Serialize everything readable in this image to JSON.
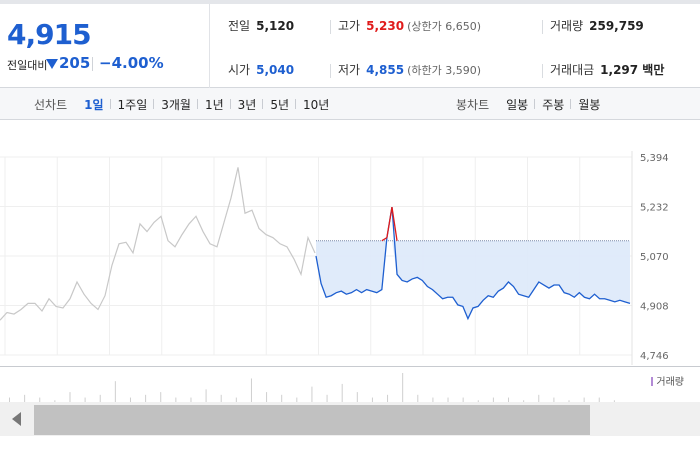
{
  "quote": {
    "price": "4,915",
    "change_label": "전일대비",
    "change_amount": "205",
    "change_percent": "−4.00%",
    "direction": "down"
  },
  "stats": {
    "prev_close": {
      "label": "전일",
      "value": "5,120"
    },
    "high": {
      "label": "고가",
      "value": "5,230",
      "limit_text": "(상한가 6,650)"
    },
    "volume": {
      "label": "거래량",
      "value": "259,759"
    },
    "open": {
      "label": "시가",
      "value": "5,040"
    },
    "low": {
      "label": "저가",
      "value": "4,855",
      "limit_text": "(하한가 3,590)"
    },
    "turnover": {
      "label": "거래대금",
      "value": "1,297 백만"
    }
  },
  "toolbar": {
    "line_label": "선차트",
    "periods": [
      "1일",
      "1주일",
      "3개월",
      "1년",
      "3년",
      "5년",
      "10년"
    ],
    "active_period": "1일",
    "candle_label": "봉차트",
    "candles": [
      "일봉",
      "주봉",
      "월봉"
    ]
  },
  "colors": {
    "down": "#1e5fd0",
    "up": "#e01b1b",
    "prev_day_line": "#c8c8c8",
    "fill": "#dde9fa",
    "volume_legend": "#b38bd6"
  },
  "chart_data": {
    "type": "line",
    "title": "",
    "xlabel": "",
    "ylabel": "",
    "ylim": [
      4746,
      5394
    ],
    "yticks": [
      "5,394",
      "5,232",
      "5,070",
      "4,908",
      "4,746"
    ],
    "grid": true,
    "reference_level": 5120,
    "series": [
      {
        "name": "",
        "values": [
          4860,
          4885,
          4880,
          4895,
          4915,
          4915,
          4890,
          4930,
          4905,
          4900,
          4930,
          4985,
          4945,
          4915,
          4895,
          4940,
          5040,
          5110,
          5115,
          5080,
          5175,
          5150,
          5180,
          5200,
          5120,
          5100,
          5140,
          5175,
          5200,
          5150,
          5110,
          5100,
          5180,
          5260,
          5360,
          5210,
          5220,
          5160,
          5140,
          5130,
          5110,
          5100,
          5060,
          5010,
          5130,
          5080
        ],
        "color": "#c8c8c8"
      },
      {
        "name": "",
        "values": [
          5070,
          4980,
          4935,
          4940,
          4950,
          4955,
          4945,
          4950,
          4960,
          4950,
          4960,
          4955,
          4950,
          4960,
          5130,
          5230,
          5010,
          4990,
          4985,
          4995,
          5000,
          4990,
          4970,
          4960,
          4945,
          4930,
          4935,
          4935,
          4910,
          4905,
          4865,
          4900,
          4905,
          4925,
          4940,
          4935,
          4955,
          4965,
          4985,
          4970,
          4945,
          4940,
          4935,
          4960,
          4985,
          4975,
          4965,
          4975,
          4975,
          4950,
          4945,
          4935,
          4950,
          4935,
          4930,
          4945,
          4930,
          4930,
          4925,
          4920,
          4925,
          4920,
          4915
        ]
      }
    ]
  },
  "volume": {
    "legend": "거래량",
    "values": [
      2,
      3,
      2,
      1,
      4,
      2,
      3,
      8,
      2,
      3,
      4,
      2,
      2,
      5,
      3,
      2,
      9,
      4,
      3,
      2,
      6,
      3,
      7,
      4,
      2,
      3,
      11,
      3,
      2,
      2,
      2,
      1,
      2,
      2,
      1,
      3,
      2,
      1,
      2,
      2,
      1
    ]
  }
}
